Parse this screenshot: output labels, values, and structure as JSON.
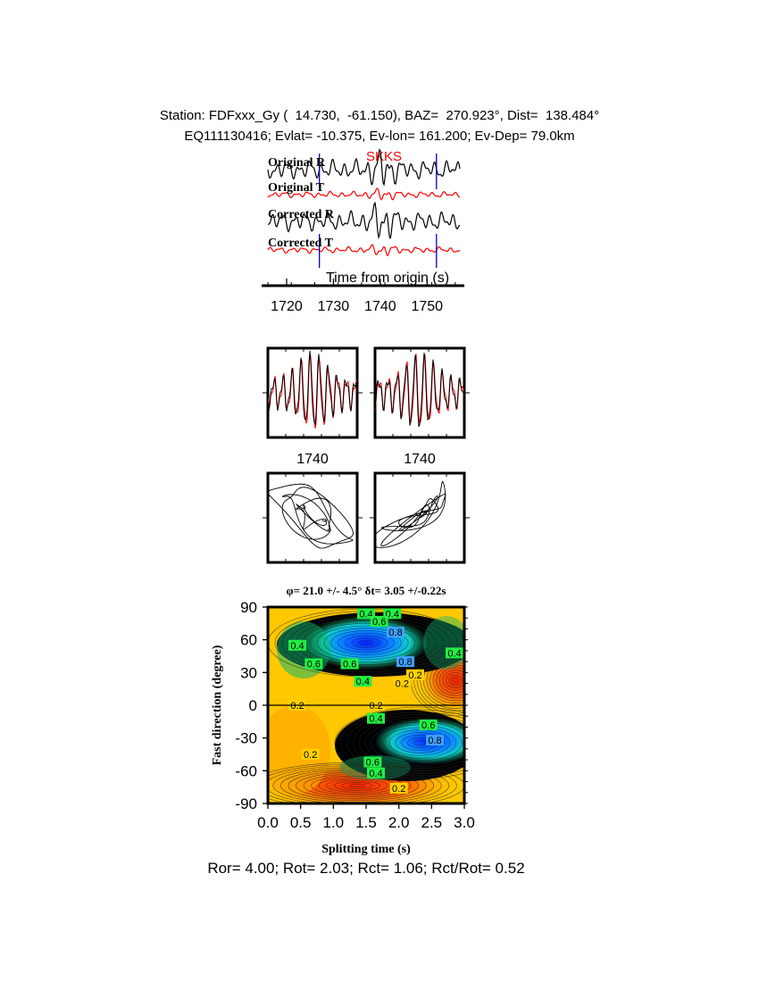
{
  "header": {
    "station_line": "Station: FDFxxx_Gy (  14.730,  -61.150), BAZ=  270.923°, Dist=  138.484°",
    "event_line": "EQ111130416; Evlat= -10.375, Ev-lon= 161.200; Ev-Dep= 79.0km"
  },
  "footer": {
    "ratio_line": "Ror= 4.00; Rot= 2.03; Rct= 1.06; Rct/Rot= 0.52"
  },
  "colors": {
    "radial": "#000000",
    "transverse": "#ff0000",
    "window_marker": "#0000cc",
    "phase_label": "#ff0000",
    "contour_label_bg": "#22ee44"
  },
  "chart_data": [
    {
      "type": "line",
      "panel": "seismograms",
      "phase_label": "SKKS",
      "traces": [
        {
          "name": "Original R",
          "color": "radial"
        },
        {
          "name": "Original T",
          "color": "transverse"
        },
        {
          "name": "Corrected R",
          "color": "radial"
        },
        {
          "name": "Corrected T",
          "color": "transverse"
        }
      ],
      "xlabel": "Time from origin (s)",
      "x_ticks": [
        1720,
        1730,
        1740,
        1750
      ],
      "xlim": [
        1716,
        1757
      ],
      "window": [
        1727,
        1752
      ],
      "phase_time": 1738
    },
    {
      "type": "line",
      "panel": "particle-motion-waveforms",
      "subplots": [
        {
          "name": "original",
          "x_tick_label": "1740"
        },
        {
          "name": "corrected",
          "x_tick_label": "1740"
        }
      ]
    },
    {
      "type": "scatter",
      "panel": "particle-motion",
      "subplots": [
        {
          "name": "original"
        },
        {
          "name": "corrected"
        }
      ]
    },
    {
      "type": "heatmap",
      "panel": "grid-search",
      "title": "φ= 21.0 +/- 4.5° δt= 3.05 +/-0.22s",
      "xlabel": "Splitting time (s)",
      "ylabel": "Fast direction (degree)",
      "xlim": [
        0,
        3
      ],
      "ylim": [
        -90,
        90
      ],
      "x_ticks": [
        "0.0",
        "0.5",
        "1.0",
        "1.5",
        "2.0",
        "2.5",
        "3.0"
      ],
      "y_ticks": [
        "90",
        "60",
        "30",
        "0",
        "-30",
        "-60",
        "-90"
      ],
      "best_phi": 21.0,
      "best_dt": 3.05,
      "contour_labels": [
        {
          "text": "0.4",
          "x": 1.5,
          "y": 84
        },
        {
          "text": "0.4",
          "x": 1.9,
          "y": 84
        },
        {
          "text": "0.6",
          "x": 1.7,
          "y": 77
        },
        {
          "text": "0.8",
          "x": 1.95,
          "y": 67
        },
        {
          "text": "0.4",
          "x": 0.45,
          "y": 55
        },
        {
          "text": "0.6",
          "x": 0.7,
          "y": 38
        },
        {
          "text": "0.6",
          "x": 1.25,
          "y": 38
        },
        {
          "text": "0.8",
          "x": 2.1,
          "y": 40
        },
        {
          "text": "0.4",
          "x": 1.45,
          "y": 22
        },
        {
          "text": "0.2",
          "x": 2.05,
          "y": 20
        },
        {
          "text": "0.2",
          "x": 2.25,
          "y": 28
        },
        {
          "text": "0.4",
          "x": 2.85,
          "y": 48
        },
        {
          "text": "0.2",
          "x": 0.45,
          "y": 0
        },
        {
          "text": "0.2",
          "x": 1.65,
          "y": 0
        },
        {
          "text": "0.4",
          "x": 1.65,
          "y": -12
        },
        {
          "text": "0.6",
          "x": 2.45,
          "y": -18
        },
        {
          "text": "0.8",
          "x": 2.55,
          "y": -32
        },
        {
          "text": "0.6",
          "x": 1.6,
          "y": -52
        },
        {
          "text": "0.4",
          "x": 1.65,
          "y": -62
        },
        {
          "text": "0.2",
          "x": 2.0,
          "y": -76
        },
        {
          "text": "0.2",
          "x": 0.65,
          "y": -45
        }
      ]
    }
  ]
}
